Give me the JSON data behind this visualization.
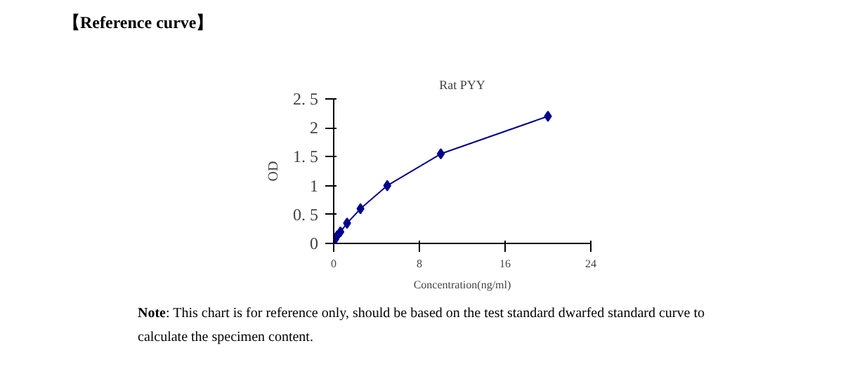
{
  "chart_data": {
    "type": "line",
    "title": "Rat PYY",
    "xlabel": "Concentration(ng/ml)",
    "ylabel": "OD",
    "annotations": [
      "【Reference curve】",
      "Note: This chart is for reference only, should be based on the test standard dwarfed standard curve to calculate the specimen content."
    ],
    "x": [
      0,
      0.16,
      0.31,
      0.625,
      1.25,
      2.5,
      5,
      10,
      20
    ],
    "series": [
      {
        "color": "#00008b",
        "values": [
          0.04,
          0.08,
          0.13,
          0.2,
          0.35,
          0.6,
          1.0,
          1.55,
          2.2
        ]
      }
    ],
    "xlim": [
      0,
      24
    ],
    "xticks": [
      0,
      8,
      16,
      24
    ],
    "ylim": [
      0,
      2.5
    ],
    "yticks": [
      0,
      {
        "value": 0.5,
        "label": "0. 5"
      },
      1,
      {
        "value": 1.5,
        "label": "1. 5"
      },
      2,
      {
        "value": 2.5,
        "label": "2. 5"
      }
    ],
    "grid": false,
    "marker": "diamond",
    "line_style": "solid"
  }
}
